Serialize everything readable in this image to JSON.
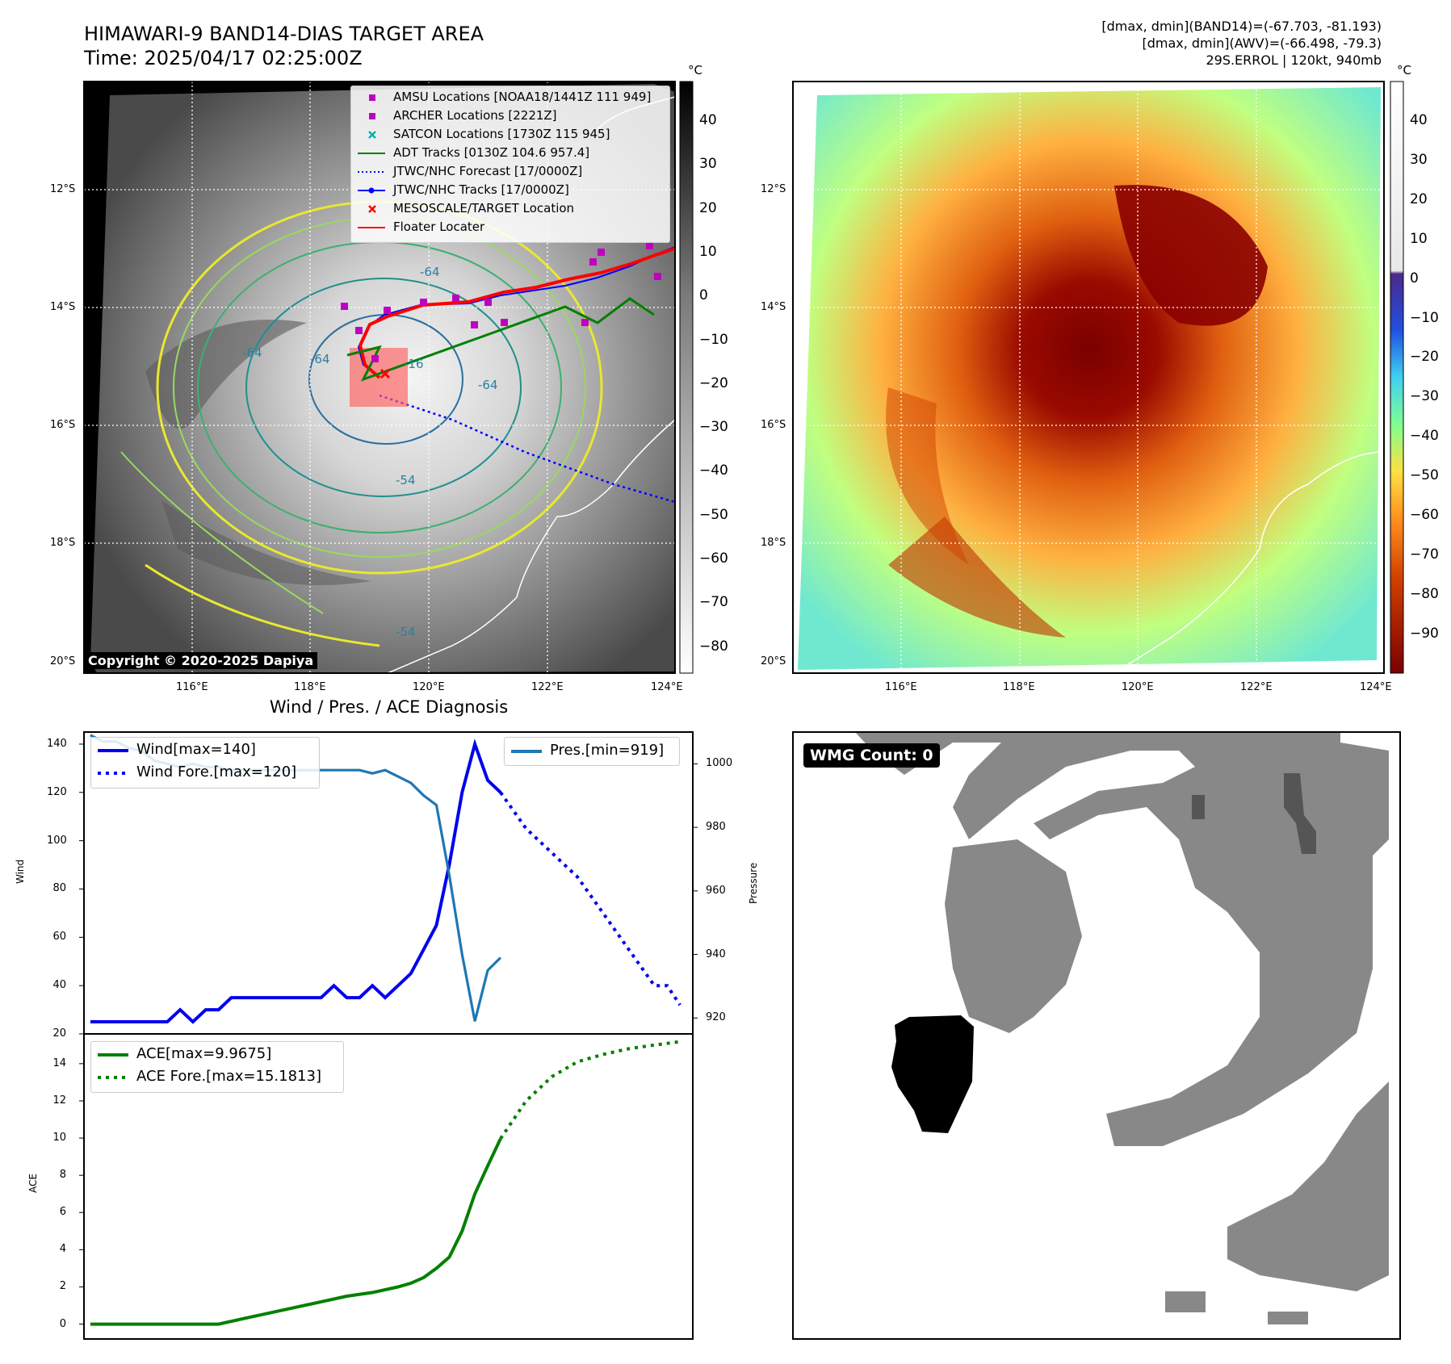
{
  "header": {
    "title": "HIMAWARI-9 BAND14-DIAS TARGET AREA",
    "time": "Time: 2025/04/17 02:25:00Z",
    "stats_line1": "[dmax, dmin](BAND14)=(-67.703, -81.193)",
    "stats_line2": "[dmax, dmin](AWV)=(-66.498, -79.3)",
    "storm_line": "29S.ERROL | 120kt, 940mb"
  },
  "maps": {
    "lat_labels": [
      "12°S",
      "14°S",
      "16°S",
      "18°S",
      "20°S"
    ],
    "lon_labels": [
      "116°E",
      "118°E",
      "120°E",
      "122°E",
      "124°E"
    ],
    "copyright": "Copyright © 2020-2025 Dapiya",
    "contour_labels": [
      "-64",
      "-64",
      "-54",
      "-64",
      "-54",
      "-64",
      "-16"
    ],
    "left_legend": [
      {
        "label": "AMSU Locations [NOAA18/1441Z 111 949]",
        "marker": "square",
        "color": "#c000c0"
      },
      {
        "label": "ARCHER Locations [2221Z]",
        "marker": "square",
        "color": "#c000c0"
      },
      {
        "label": "SATCON Locations [1730Z 115 945]",
        "marker": "x",
        "color": "#00b0b0"
      },
      {
        "label": "ADT Tracks [0130Z 104.6 957.4]",
        "marker": "line",
        "color": "#008000"
      },
      {
        "label": "JTWC/NHC Forecast [17/0000Z]",
        "marker": "dotted",
        "color": "#0000ff"
      },
      {
        "label": "JTWC/NHC Tracks [17/0000Z]",
        "marker": "line-dot",
        "color": "#0000ff"
      },
      {
        "label": "MESOSCALE/TARGET Location",
        "marker": "x",
        "color": "#ff0000"
      },
      {
        "label": "Floater Locater",
        "marker": "line",
        "color": "#ff0000"
      }
    ],
    "gray_colorbar": {
      "unit": "°C",
      "ticks": [
        "40",
        "30",
        "20",
        "10",
        "0",
        "−10",
        "−20",
        "−30",
        "−40",
        "−50",
        "−60",
        "−70",
        "−80"
      ]
    },
    "color_colorbar": {
      "unit": "°C",
      "ticks": [
        "40",
        "30",
        "20",
        "10",
        "0",
        "−10",
        "−20",
        "−30",
        "−40",
        "−50",
        "−60",
        "−70",
        "−80",
        "−90"
      ]
    }
  },
  "wmg": {
    "label": "WMG Count: 0"
  },
  "colors": {
    "wind": "#0000ee",
    "pressure": "#1f77b4",
    "ace": "#008000",
    "floater": "#ff0000",
    "amsu": "#c000c0"
  },
  "chart_data": [
    {
      "type": "line",
      "title": "Wind / Pres. / ACE Diagnosis",
      "ylabel": "Wind",
      "ylabel_right": "Pressure",
      "ylim": [
        20,
        145
      ],
      "ylim_right": [
        915,
        1010
      ],
      "yticks": [
        "140",
        "120",
        "100",
        "80",
        "60",
        "40",
        "20"
      ],
      "yticks_right": [
        "1000",
        "980",
        "960",
        "940",
        "920"
      ],
      "xlim": [
        -0.5,
        47
      ],
      "series": [
        {
          "name": "Wind[max=140]",
          "style": "solid",
          "color": "#0000ee",
          "x": [
            0,
            1,
            2,
            3,
            4,
            5,
            6,
            7,
            8,
            9,
            10,
            11,
            12,
            13,
            14,
            15,
            16,
            17,
            18,
            19,
            20,
            21,
            22,
            23,
            24,
            25,
            26,
            27,
            28,
            29,
            30,
            31,
            32
          ],
          "y": [
            25,
            25,
            25,
            25,
            25,
            25,
            25,
            30,
            25,
            30,
            30,
            35,
            35,
            35,
            35,
            35,
            35,
            35,
            35,
            40,
            35,
            35,
            40,
            35,
            40,
            45,
            55,
            65,
            90,
            120,
            140,
            125,
            120
          ]
        },
        {
          "name": "Wind Fore.[max=120]",
          "style": "dotted",
          "color": "#0000ee",
          "x": [
            32,
            34,
            36,
            38,
            40,
            42,
            44,
            45,
            46
          ],
          "y": [
            120,
            105,
            95,
            85,
            70,
            55,
            40,
            40,
            32
          ]
        },
        {
          "name": "Pres.[min=919]",
          "style": "solid",
          "color": "#1f77b4",
          "axis": "right",
          "x": [
            0,
            1,
            2,
            3,
            4,
            5,
            6,
            7,
            8,
            9,
            10,
            11,
            12,
            13,
            14,
            15,
            16,
            17,
            18,
            19,
            20,
            21,
            22,
            23,
            24,
            25,
            26,
            27,
            28,
            29,
            30,
            31,
            32
          ],
          "y": [
            1009,
            1007,
            1007,
            1005,
            1004,
            1001,
            1000,
            999,
            1000,
            999,
            999,
            998,
            998,
            998,
            998,
            998,
            998,
            998,
            998,
            998,
            998,
            998,
            997,
            998,
            996,
            994,
            990,
            987,
            965,
            940,
            919,
            935,
            939
          ]
        }
      ]
    },
    {
      "type": "line",
      "ylabel": "ACE",
      "ylim": [
        -0.8,
        15.6
      ],
      "yticks": [
        "14",
        "12",
        "10",
        "8",
        "6",
        "4",
        "2",
        "0"
      ],
      "xlim": [
        -0.5,
        47
      ],
      "series": [
        {
          "name": "ACE[max=9.9675]",
          "style": "solid",
          "color": "#008000",
          "x": [
            0,
            2,
            4,
            6,
            8,
            10,
            12,
            14,
            16,
            18,
            20,
            22,
            24,
            25,
            26,
            27,
            28,
            29,
            30,
            31,
            32
          ],
          "y": [
            0,
            0,
            0,
            0,
            0,
            0,
            0.3,
            0.6,
            0.9,
            1.2,
            1.5,
            1.7,
            2.0,
            2.2,
            2.5,
            3.0,
            3.6,
            5.0,
            7.0,
            8.5,
            9.9675
          ]
        },
        {
          "name": "ACE Fore.[max=15.1813]",
          "style": "dotted",
          "color": "#008000",
          "x": [
            32,
            34,
            36,
            38,
            40,
            42,
            44,
            46
          ],
          "y": [
            9.9675,
            12.0,
            13.3,
            14.1,
            14.5,
            14.8,
            15.0,
            15.1813
          ]
        }
      ]
    }
  ]
}
